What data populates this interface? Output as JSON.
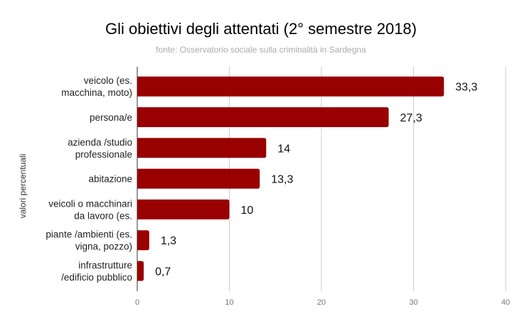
{
  "chart_data": {
    "type": "bar",
    "orientation": "horizontal",
    "title": "Gli obiettivi degli attentati (2° semestre 2018)",
    "subtitle": "fonte: Osservatorio sociale sulla criminalità in Sardegna",
    "ylabel": "valori percentuali",
    "xlabel": "",
    "categories": [
      [
        "veicolo (es.",
        "macchina, moto)"
      ],
      [
        "persona/e"
      ],
      [
        "azienda /studio",
        "professionale"
      ],
      [
        "abitazione"
      ],
      [
        "veicoli o macchinari",
        "da lavoro (es."
      ],
      [
        "piante /ambienti (es.",
        "vigna, pozzo)"
      ],
      [
        "infrastrutture",
        "/edificio pubblico"
      ]
    ],
    "values": [
      33.3,
      27.3,
      14,
      13.3,
      10,
      1.3,
      0.7
    ],
    "value_labels": [
      "33,3",
      "27,3",
      "14",
      "13,3",
      "10",
      "1,3",
      "0,7"
    ],
    "xlim": [
      0,
      40
    ],
    "xticks": [
      0,
      10,
      20,
      30,
      40
    ],
    "xtick_labels": [
      "0",
      "10",
      "20",
      "30",
      "40"
    ],
    "grid": true,
    "bar_color": "#990000",
    "grid_color": "#cccccc"
  }
}
